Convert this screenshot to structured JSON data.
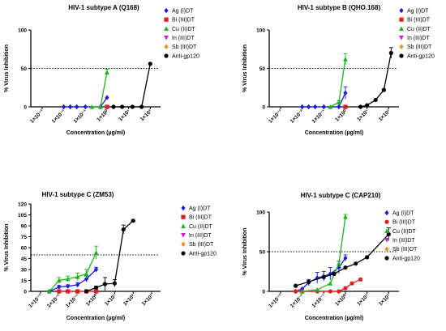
{
  "chart_data": [
    {
      "type": "line",
      "title": "HIV-1 subtype A (Q168)",
      "xlabel": "Concentration (µg/ml)",
      "ylabel": "% Virus Inhibition",
      "xscale": "log",
      "xticks": [
        "1×10⁻³",
        "1×10⁻²",
        "1×10⁻¹",
        "1×10⁰",
        "1×10¹",
        "1×10²"
      ],
      "xlim": [
        0.0003,
        300
      ],
      "ylim": [
        0,
        100
      ],
      "yticks": [
        0,
        50,
        100
      ],
      "reference_line": 50,
      "legend": "right",
      "series": [
        {
          "name": "Ag (I)DT",
          "color": "#1a1ae6",
          "marker": "diamond",
          "x": [
            0.01,
            0.02,
            0.04,
            0.1,
            0.5,
            1
          ],
          "y": [
            0,
            0,
            0,
            0,
            0,
            12
          ]
        },
        {
          "name": "Bi (III)DT",
          "color": "#e61a1a",
          "marker": "square",
          "x": [
            1
          ],
          "y": [
            0
          ]
        },
        {
          "name": "Cu (II)DT",
          "color": "#16b816",
          "marker": "triangle-up",
          "x": [
            0.2,
            0.5,
            1
          ],
          "y": [
            0,
            0,
            45
          ],
          "err": [
            0,
            0,
            4
          ]
        },
        {
          "name": "In (III)DT",
          "color": "#d11ad1",
          "marker": "triangle-down",
          "x": [],
          "y": []
        },
        {
          "name": "Sb (III)DT",
          "color": "#f28c1a",
          "marker": "diamond",
          "x": [],
          "y": []
        },
        {
          "name": "Anti-gp120",
          "color": "#000000",
          "marker": "circle",
          "x": [
            2,
            5,
            15,
            40,
            100
          ],
          "y": [
            0,
            0,
            0,
            0,
            56
          ]
        }
      ]
    },
    {
      "type": "line",
      "title": "HIV-1 subtype B (QHO.168)",
      "xlabel": "Concentration (µg/ml)",
      "ylabel": "% Virus Inhibition",
      "xscale": "log",
      "xticks": [
        "1×10⁻³",
        "1×10⁻²",
        "1×10⁻¹",
        "1×10⁰",
        "1×10¹",
        "1×10²"
      ],
      "xlim": [
        0.0003,
        300
      ],
      "ylim": [
        0,
        100
      ],
      "yticks": [
        0,
        50,
        100
      ],
      "reference_line": 50,
      "legend": "right",
      "series": [
        {
          "name": "Ag (I)DT",
          "color": "#1a1ae6",
          "marker": "diamond",
          "x": [
            0.01,
            0.02,
            0.04,
            0.1,
            0.5,
            1
          ],
          "y": [
            0,
            0,
            0,
            0,
            0,
            18
          ],
          "err": [
            0,
            0,
            0,
            0,
            0,
            8
          ]
        },
        {
          "name": "Bi (III)DT",
          "color": "#e61a1a",
          "marker": "square",
          "x": [
            1
          ],
          "y": [
            0
          ]
        },
        {
          "name": "Cu (II)DT",
          "color": "#16b816",
          "marker": "triangle-up",
          "x": [
            0.2,
            0.5,
            1
          ],
          "y": [
            0,
            6,
            62
          ],
          "err": [
            0,
            2,
            7
          ]
        },
        {
          "name": "In (III)DT",
          "color": "#d11ad1",
          "marker": "triangle-down",
          "x": [],
          "y": []
        },
        {
          "name": "Sb (III)DT",
          "color": "#f28c1a",
          "marker": "diamond",
          "x": [],
          "y": []
        },
        {
          "name": "Anti-gp120",
          "color": "#000000",
          "marker": "circle",
          "x": [
            5,
            10,
            25,
            60,
            130
          ],
          "y": [
            0,
            2,
            9,
            22,
            70
          ],
          "err": [
            0,
            0,
            0,
            0,
            7
          ]
        }
      ]
    },
    {
      "type": "line",
      "title": "HIV-1 subtype C (ZM53)",
      "xlabel": "Concentration (µg/ml)",
      "ylabel": "% Virus Inhibition",
      "xscale": "log",
      "xticks": [
        "1×10⁻³",
        "1×10⁻²",
        "1×10⁻¹",
        "1×10⁰",
        "1×10¹",
        "1×10²",
        "1×10³"
      ],
      "xlim": [
        0.0003,
        3000
      ],
      "ylim": [
        0,
        120
      ],
      "yticks": [
        0,
        15,
        30,
        45,
        60,
        75,
        90,
        105,
        120
      ],
      "reference_line": 50,
      "legend": "right",
      "series": [
        {
          "name": "Ag (I)DT",
          "color": "#1a1ae6",
          "marker": "diamond",
          "x": [
            0.003,
            0.01,
            0.03,
            0.1,
            0.3,
            1
          ],
          "y": [
            0,
            6,
            7,
            9,
            17,
            30
          ],
          "err": [
            0,
            2,
            2,
            3,
            4,
            3
          ]
        },
        {
          "name": "Bi (III)DT",
          "color": "#e61a1a",
          "marker": "square",
          "x": [
            0.01,
            0.03,
            0.1,
            0.3,
            1
          ],
          "y": [
            0,
            0,
            0,
            0,
            0
          ]
        },
        {
          "name": "Cu (II)DT",
          "color": "#16b816",
          "marker": "triangle-up",
          "x": [
            0.003,
            0.01,
            0.03,
            0.1,
            0.3,
            1
          ],
          "y": [
            0,
            15,
            17,
            20,
            24,
            53
          ],
          "err": [
            0,
            4,
            4,
            5,
            6,
            9
          ]
        },
        {
          "name": "In (III)DT",
          "color": "#d11ad1",
          "marker": "triangle-down",
          "x": [],
          "y": []
        },
        {
          "name": "Sb (III)DT",
          "color": "#f28c1a",
          "marker": "diamond",
          "x": [],
          "y": []
        },
        {
          "name": "Anti-gp120",
          "color": "#000000",
          "marker": "circle",
          "x": [
            0.3,
            1,
            3,
            10,
            30,
            100
          ],
          "y": [
            0,
            5,
            10,
            11,
            85,
            97
          ],
          "err": [
            0,
            2,
            9,
            5,
            6,
            0
          ]
        }
      ]
    },
    {
      "type": "line",
      "title": "HIV-1 subtype C (CAP210)",
      "xlabel": "Concentration (µg/ml)",
      "ylabel": "% Virus Inhibition",
      "xscale": "log",
      "xticks": [
        "1×10⁻³",
        "1×10⁻²",
        "1×10⁻¹",
        "1×10⁰",
        "1×10¹",
        "1×10²"
      ],
      "xlim": [
        0.0003,
        300
      ],
      "ylim": [
        0,
        100
      ],
      "yticks": [
        0,
        50,
        100
      ],
      "reference_line": 50,
      "legend": "right",
      "series": [
        {
          "name": "Ag (I)DT",
          "color": "#1a1ae6",
          "marker": "diamond",
          "x": [
            0.005,
            0.01,
            0.02,
            0.05,
            0.1,
            0.2,
            0.5,
            1
          ],
          "y": [
            0,
            3,
            11,
            17,
            19,
            22,
            30,
            42
          ],
          "err": [
            0,
            0,
            4,
            7,
            6,
            8,
            8,
            4
          ]
        },
        {
          "name": "Bi (III)DT",
          "color": "#e61a1a",
          "marker": "circle",
          "x": [
            0.005,
            0.01,
            0.05,
            0.2,
            0.5,
            1,
            2,
            5
          ],
          "y": [
            0,
            0,
            0,
            0,
            0,
            4,
            10,
            15
          ]
        },
        {
          "name": "Cu (II)DT",
          "color": "#16b816",
          "marker": "triangle-up",
          "x": [
            0.01,
            0.05,
            0.2,
            0.5,
            1
          ],
          "y": [
            0,
            2,
            10,
            35,
            94
          ],
          "err": [
            0,
            0,
            0,
            0,
            3
          ]
        },
        {
          "name": "In (III)DT",
          "color": "#d11ad1",
          "marker": "triangle-down",
          "x": [],
          "y": []
        },
        {
          "name": "Sb (III)DT",
          "color": "#f28c1a",
          "marker": "diamond",
          "x": [],
          "y": []
        },
        {
          "name": "Anti-gp120",
          "color": "#000000",
          "marker": "circle",
          "x": [
            0.005,
            0.02,
            0.1,
            0.3,
            1,
            3,
            10,
            100
          ],
          "y": [
            7,
            12,
            18,
            22,
            30,
            35,
            43,
            72
          ],
          "err": [
            0,
            0,
            0,
            0,
            0,
            0,
            0,
            8
          ]
        }
      ]
    }
  ]
}
